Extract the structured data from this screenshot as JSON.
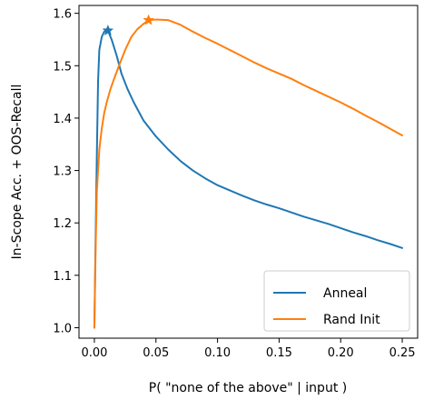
{
  "chart_data": {
    "type": "line",
    "title": "",
    "xlabel": "P( \"none of the above\" | input )",
    "ylabel": "In-Scope Acc. + OOS-Recall",
    "xlim": [
      -0.0125,
      0.2625
    ],
    "ylim": [
      0.98,
      1.615
    ],
    "xticks": [
      0.0,
      0.05,
      0.1,
      0.15,
      0.2,
      0.25
    ],
    "xtick_labels": [
      "0.00",
      "0.05",
      "0.10",
      "0.15",
      "0.20",
      "0.25"
    ],
    "yticks": [
      1.0,
      1.1,
      1.2,
      1.3,
      1.4,
      1.5,
      1.6
    ],
    "ytick_labels": [
      "1.0",
      "1.1",
      "1.2",
      "1.3",
      "1.4",
      "1.5",
      "1.6"
    ],
    "grid": false,
    "legend_position": "lower-right",
    "series": [
      {
        "name": "Anneal",
        "color": "#1f77b4",
        "marker": "star",
        "marker_point": [
          0.011,
          1.567
        ],
        "x": [
          0.0,
          0.001,
          0.002,
          0.003,
          0.004,
          0.006,
          0.008,
          0.011,
          0.014,
          0.018,
          0.022,
          0.027,
          0.032,
          0.04,
          0.05,
          0.06,
          0.07,
          0.08,
          0.09,
          0.1,
          0.11,
          0.12,
          0.13,
          0.14,
          0.15,
          0.16,
          0.17,
          0.18,
          0.19,
          0.2,
          0.21,
          0.22,
          0.23,
          0.24,
          0.25
        ],
        "y": [
          1.0,
          1.17,
          1.33,
          1.47,
          1.53,
          1.555,
          1.565,
          1.567,
          1.55,
          1.52,
          1.485,
          1.455,
          1.43,
          1.395,
          1.365,
          1.34,
          1.318,
          1.3,
          1.285,
          1.272,
          1.262,
          1.252,
          1.243,
          1.235,
          1.228,
          1.22,
          1.212,
          1.205,
          1.198,
          1.19,
          1.182,
          1.175,
          1.167,
          1.16,
          1.152
        ]
      },
      {
        "name": "Rand Init",
        "color": "#ff7f0e",
        "marker": "star",
        "marker_point": [
          0.044,
          1.587
        ],
        "x": [
          0.0,
          0.001,
          0.002,
          0.004,
          0.006,
          0.008,
          0.01,
          0.013,
          0.016,
          0.02,
          0.025,
          0.03,
          0.035,
          0.04,
          0.044,
          0.05,
          0.06,
          0.07,
          0.08,
          0.09,
          0.1,
          0.11,
          0.12,
          0.13,
          0.14,
          0.15,
          0.16,
          0.17,
          0.18,
          0.19,
          0.2,
          0.21,
          0.22,
          0.23,
          0.24,
          0.25
        ],
        "y": [
          1.0,
          1.15,
          1.26,
          1.34,
          1.38,
          1.41,
          1.43,
          1.455,
          1.475,
          1.5,
          1.53,
          1.555,
          1.57,
          1.58,
          1.587,
          1.588,
          1.587,
          1.578,
          1.565,
          1.553,
          1.542,
          1.53,
          1.518,
          1.506,
          1.495,
          1.485,
          1.475,
          1.463,
          1.452,
          1.441,
          1.43,
          1.418,
          1.405,
          1.393,
          1.38,
          1.367
        ]
      }
    ]
  }
}
